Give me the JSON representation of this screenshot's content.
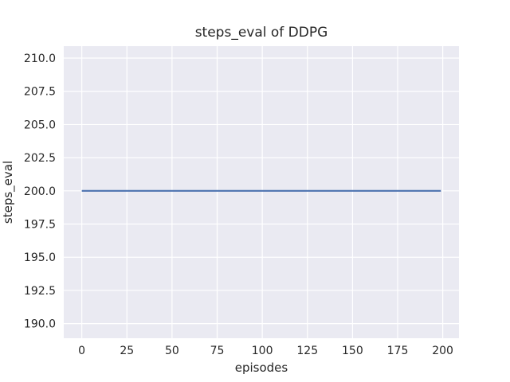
{
  "chart_data": {
    "type": "line",
    "title": "steps_eval of DDPG",
    "xlabel": "episodes",
    "ylabel": "steps_eval",
    "series": [
      {
        "name": "steps_eval",
        "color": "#4C72B0",
        "x": [
          0,
          199
        ],
        "y": [
          200,
          200
        ]
      }
    ],
    "xticks": [
      0,
      25,
      50,
      75,
      100,
      125,
      150,
      175,
      200
    ],
    "xtick_labels": [
      "0",
      "25",
      "50",
      "75",
      "100",
      "125",
      "150",
      "175",
      "200"
    ],
    "yticks": [
      190.0,
      192.5,
      195.0,
      197.5,
      200.0,
      202.5,
      205.0,
      207.5,
      210.0
    ],
    "ytick_labels": [
      "190.0",
      "192.5",
      "195.0",
      "197.5",
      "200.0",
      "202.5",
      "205.0",
      "207.5",
      "210.0"
    ],
    "xlim": [
      -10,
      209
    ],
    "ylim": [
      188.9,
      210.9
    ],
    "grid": true,
    "legend": "none",
    "style": {
      "figure_bg": "#ffffff",
      "axes_bg": "#eaeaf2",
      "grid_color": "#ffffff",
      "line_color": "#4C72B0",
      "text_color": "#262626"
    }
  }
}
